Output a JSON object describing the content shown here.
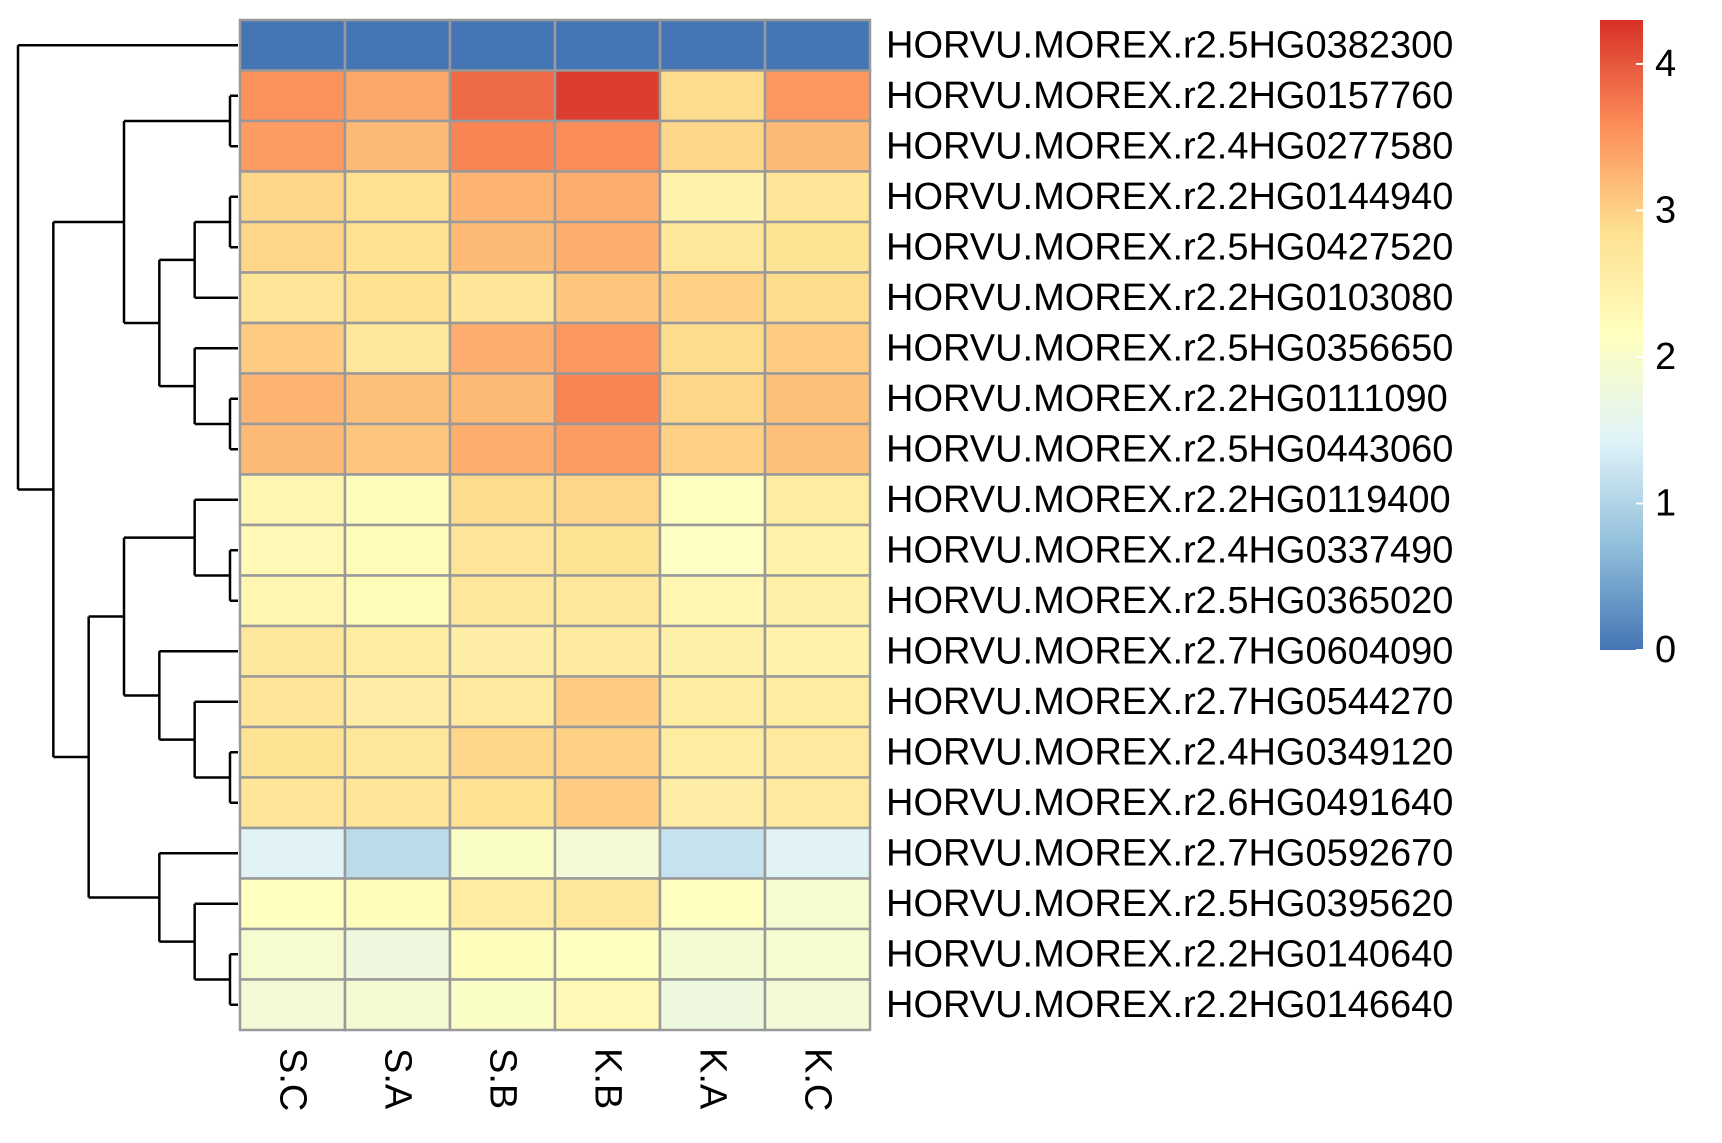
{
  "chart_data": {
    "type": "heatmap",
    "title": "",
    "xlabel": "",
    "ylabel": "",
    "columns": [
      "S.C",
      "S.A",
      "S.B",
      "K.B",
      "K.A",
      "K.C"
    ],
    "rows": [
      "HORVU.MOREX.r2.5HG0382300",
      "HORVU.MOREX.r2.2HG0157760",
      "HORVU.MOREX.r2.4HG0277580",
      "HORVU.MOREX.r2.2HG0144940",
      "HORVU.MOREX.r2.5HG0427520",
      "HORVU.MOREX.r2.2HG0103080",
      "HORVU.MOREX.r2.5HG0356650",
      "HORVU.MOREX.r2.2HG0111090",
      "HORVU.MOREX.r2.5HG0443060",
      "HORVU.MOREX.r2.2HG0119400",
      "HORVU.MOREX.r2.4HG0337490",
      "HORVU.MOREX.r2.5HG0365020",
      "HORVU.MOREX.r2.7HG0604090",
      "HORVU.MOREX.r2.7HG0544270",
      "HORVU.MOREX.r2.4HG0349120",
      "HORVU.MOREX.r2.6HG0491640",
      "HORVU.MOREX.r2.7HG0592670",
      "HORVU.MOREX.r2.5HG0395620",
      "HORVU.MOREX.r2.2HG0140640",
      "HORVU.MOREX.r2.2HG0146640"
    ],
    "values": [
      [
        0.0,
        0.0,
        0.0,
        0.0,
        0.0,
        0.0
      ],
      [
        3.55,
        3.35,
        3.85,
        4.2,
        2.9,
        3.5
      ],
      [
        3.45,
        3.2,
        3.65,
        3.6,
        2.95,
        3.2
      ],
      [
        2.95,
        2.85,
        3.25,
        3.3,
        2.45,
        2.75
      ],
      [
        2.95,
        2.85,
        3.2,
        3.3,
        2.7,
        2.8
      ],
      [
        2.75,
        2.85,
        2.75,
        3.1,
        3.0,
        2.9
      ],
      [
        3.05,
        2.7,
        3.3,
        3.5,
        2.9,
        3.05
      ],
      [
        3.25,
        3.15,
        3.2,
        3.65,
        2.95,
        3.15
      ],
      [
        3.2,
        3.1,
        3.3,
        3.45,
        3.0,
        3.15
      ],
      [
        2.35,
        2.2,
        2.9,
        2.95,
        2.15,
        2.6
      ],
      [
        2.3,
        2.25,
        2.75,
        2.8,
        2.1,
        2.45
      ],
      [
        2.35,
        2.25,
        2.7,
        2.7,
        2.35,
        2.5
      ],
      [
        2.7,
        2.6,
        2.55,
        2.65,
        2.5,
        2.45
      ],
      [
        2.75,
        2.55,
        2.65,
        3.05,
        2.6,
        2.6
      ],
      [
        2.8,
        2.7,
        2.95,
        3.0,
        2.6,
        2.65
      ],
      [
        2.75,
        2.75,
        2.85,
        3.05,
        2.55,
        2.65
      ],
      [
        1.45,
        1.1,
        2.05,
        1.85,
        1.2,
        1.45
      ],
      [
        2.15,
        2.2,
        2.6,
        2.7,
        2.15,
        1.95
      ],
      [
        1.95,
        1.75,
        2.2,
        2.15,
        1.9,
        1.95
      ],
      [
        1.85,
        1.9,
        2.05,
        2.3,
        1.75,
        1.85
      ]
    ],
    "colorbar": {
      "min": 0,
      "max": 4.3,
      "ticks": [
        0,
        1,
        2,
        3,
        4
      ],
      "colors": [
        "#4575B4",
        "#91BFDB",
        "#E0F3F8",
        "#FFFFBF",
        "#FEE090",
        "#FC8D59",
        "#D73027"
      ]
    },
    "cell_border_color": "#999999",
    "dendrogram": {
      "side": "left",
      "tree": {
        "c": [
          {
            "l": 0
          },
          {
            "c": [
              {
                "c": [
                  {
                    "c": [
                      {
                        "l": 1
                      },
                      {
                        "l": 2
                      }
                    ]
                  },
                  {
                    "c": [
                      {
                        "c": [
                          {
                            "c": [
                              {
                                "l": 3
                              },
                              {
                                "l": 4
                              }
                            ]
                          },
                          {
                            "l": 5
                          }
                        ]
                      },
                      {
                        "c": [
                          {
                            "l": 6
                          },
                          {
                            "c": [
                              {
                                "l": 7
                              },
                              {
                                "l": 8
                              }
                            ]
                          }
                        ]
                      }
                    ]
                  }
                ]
              },
              {
                "c": [
                  {
                    "c": [
                      {
                        "c": [
                          {
                            "l": 9
                          },
                          {
                            "c": [
                              {
                                "l": 10
                              },
                              {
                                "l": 11
                              }
                            ]
                          }
                        ]
                      },
                      {
                        "c": [
                          {
                            "l": 12
                          },
                          {
                            "c": [
                              {
                                "l": 13
                              },
                              {
                                "c": [
                                  {
                                    "l": 14
                                  },
                                  {
                                    "l": 15
                                  }
                                ]
                              }
                            ]
                          }
                        ]
                      }
                    ]
                  },
                  {
                    "c": [
                      {
                        "l": 16
                      },
                      {
                        "c": [
                          {
                            "l": 17
                          },
                          {
                            "c": [
                              {
                                "l": 18
                              },
                              {
                                "l": 19
                              }
                            ]
                          }
                        ]
                      }
                    ]
                  }
                ]
              }
            ]
          }
        ]
      }
    }
  }
}
